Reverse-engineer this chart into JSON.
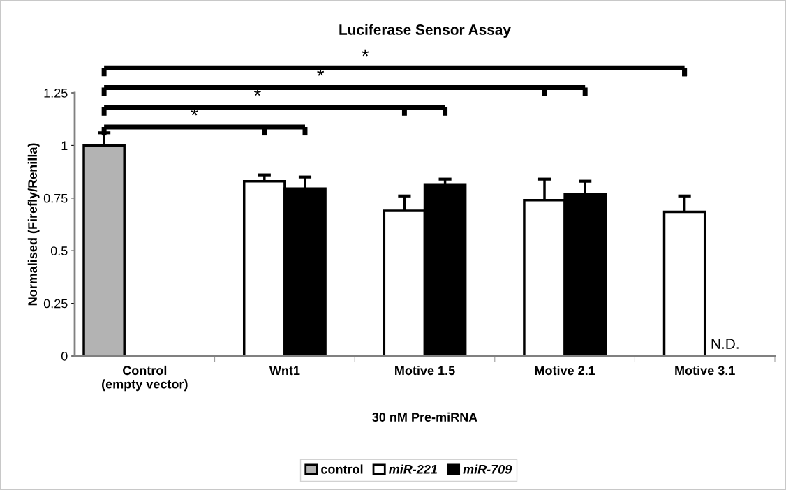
{
  "chart_data": {
    "type": "bar",
    "title": "Luciferase Sensor Assay",
    "xlabel": "30 nM Pre-miRNA",
    "ylabel": "Normalised (Firefly/Renilla)",
    "categories": [
      "Control\n(empty vector)",
      "Wnt1",
      "Motive 1.5",
      "Motive 2.1",
      "Motive 3.1"
    ],
    "series": [
      {
        "name": "control",
        "color": "#b3b3b3",
        "values": [
          1.0,
          null,
          null,
          null,
          null
        ],
        "errors": [
          [
            1.0,
            1.06
          ],
          null,
          null,
          null,
          null
        ]
      },
      {
        "name": "miR-221",
        "color": "#ffffff",
        "values": [
          null,
          0.83,
          0.69,
          0.74,
          0.685
        ],
        "errors": [
          null,
          [
            0.83,
            0.86
          ],
          [
            0.69,
            0.76
          ],
          [
            0.74,
            0.84
          ],
          [
            0.685,
            0.76
          ]
        ]
      },
      {
        "name": "miR-709",
        "color": "#000000",
        "values": [
          null,
          0.795,
          0.815,
          0.77,
          null
        ],
        "errors": [
          null,
          [
            0.795,
            0.85
          ],
          [
            0.815,
            0.84
          ],
          [
            0.77,
            0.83
          ],
          null
        ]
      }
    ],
    "ylim": [
      0,
      1.25
    ],
    "yticks": [
      0,
      0.25,
      0.5,
      0.75,
      1,
      1.25
    ],
    "grid": false,
    "legend": "bottom",
    "annotations": [
      "*",
      "*",
      "*",
      "*",
      {
        "text": "N.D.",
        "x": "Motive 3.1",
        "y": 0
      }
    ]
  }
}
